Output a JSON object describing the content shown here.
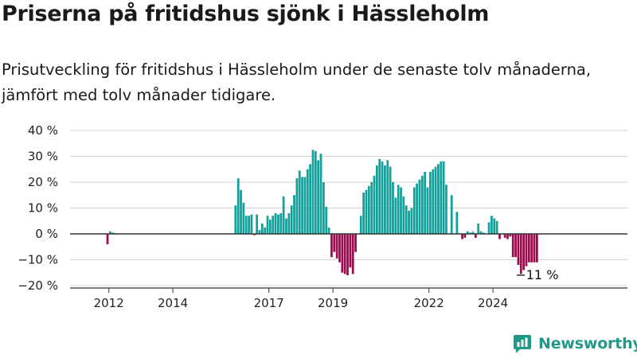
{
  "title": "Priserna på fritidshus sjönk i Hässleholm",
  "subtitle": "Prisutveckling för fritidshus i Hässleholm under de senaste tolv månaderna, jämfört med tolv månader tidigare.",
  "brand": {
    "name": "Newsworthy",
    "icon": "newsworthy-logo-icon",
    "color": "#229988"
  },
  "chart_data": {
    "type": "bar",
    "ylim": [
      -20,
      40
    ],
    "yticks": [
      -20,
      -10,
      0,
      10,
      20,
      30,
      40
    ],
    "ytick_labels": [
      "−20 %",
      "−10 %",
      "0 %",
      "10 %",
      "20 %",
      "30 %",
      "40 %"
    ],
    "xticks": [
      "2012",
      "2014",
      "2017",
      "2019",
      "2022",
      "2024"
    ],
    "grid": true,
    "colors": {
      "positive": "#12a09a",
      "negative": "#9b0b4e"
    },
    "annotation": {
      "text": "−11 %",
      "x": "2025-05"
    },
    "x": [
      "2011-12",
      "2012-01",
      "2012-02",
      "2012-03",
      "2015-12",
      "2016-01",
      "2016-02",
      "2016-03",
      "2016-04",
      "2016-05",
      "2016-06",
      "2016-07",
      "2016-08",
      "2016-09",
      "2016-10",
      "2016-11",
      "2016-12",
      "2017-01",
      "2017-02",
      "2017-03",
      "2017-04",
      "2017-05",
      "2017-06",
      "2017-07",
      "2017-08",
      "2017-09",
      "2017-10",
      "2017-11",
      "2017-12",
      "2018-01",
      "2018-02",
      "2018-03",
      "2018-04",
      "2018-05",
      "2018-06",
      "2018-07",
      "2018-08",
      "2018-09",
      "2018-10",
      "2018-11",
      "2018-12",
      "2019-01",
      "2019-02",
      "2019-03",
      "2019-04",
      "2019-05",
      "2019-06",
      "2019-07",
      "2019-08",
      "2019-09",
      "2019-10",
      "2019-11",
      "2019-12",
      "2020-01",
      "2020-02",
      "2020-03",
      "2020-04",
      "2020-05",
      "2020-06",
      "2020-07",
      "2020-08",
      "2020-09",
      "2020-10",
      "2020-11",
      "2020-12",
      "2021-01",
      "2021-02",
      "2021-03",
      "2021-04",
      "2021-05",
      "2021-06",
      "2021-07",
      "2021-08",
      "2021-09",
      "2021-10",
      "2021-11",
      "2021-12",
      "2022-01",
      "2022-02",
      "2022-03",
      "2022-04",
      "2022-05",
      "2022-06",
      "2022-07",
      "2022-09",
      "2022-11",
      "2023-01",
      "2023-02",
      "2023-03",
      "2023-04",
      "2023-05",
      "2023-06",
      "2023-07",
      "2023-08",
      "2023-09",
      "2023-11",
      "2023-12",
      "2024-01",
      "2024-02",
      "2024-03",
      "2024-05",
      "2024-06",
      "2024-07",
      "2024-08",
      "2024-09",
      "2024-10",
      "2024-11",
      "2024-12",
      "2025-01",
      "2025-02",
      "2025-03",
      "2025-04",
      "2025-05"
    ],
    "series": [
      {
        "values": [
          -4,
          1,
          0.5,
          0.3,
          11,
          21.5,
          17,
          12,
          7,
          7,
          7.5,
          -0.5,
          7.5,
          1.5,
          4,
          2.5,
          7,
          5.5,
          7,
          8,
          7.5,
          8,
          14.5,
          6,
          8,
          11,
          15,
          21.5,
          24.5,
          22,
          22,
          25,
          27,
          32.5,
          32,
          28.5,
          31,
          20,
          10.5,
          2.5,
          -9,
          -7,
          -9.5,
          -11,
          -15,
          -15.5,
          -16,
          -13,
          -15.5,
          -7,
          0,
          7,
          16,
          17,
          18.5,
          20,
          22.5,
          26.5,
          29,
          28,
          26.5,
          28.5,
          26,
          20,
          14,
          19,
          18,
          14.5,
          11,
          9,
          10,
          18,
          19.5,
          21,
          22.5,
          24,
          18,
          24,
          25,
          26,
          27,
          28,
          28,
          19,
          15,
          8.5,
          -2,
          -1.5,
          1,
          0.5,
          0.8,
          -1.5,
          4,
          1,
          0.5,
          4.5,
          7,
          6,
          5,
          -2,
          -1.5,
          -2,
          -1,
          -9,
          -9,
          -12,
          -15.5,
          -14,
          -12.5,
          -11,
          -11,
          -11,
          -11
        ]
      }
    ]
  }
}
